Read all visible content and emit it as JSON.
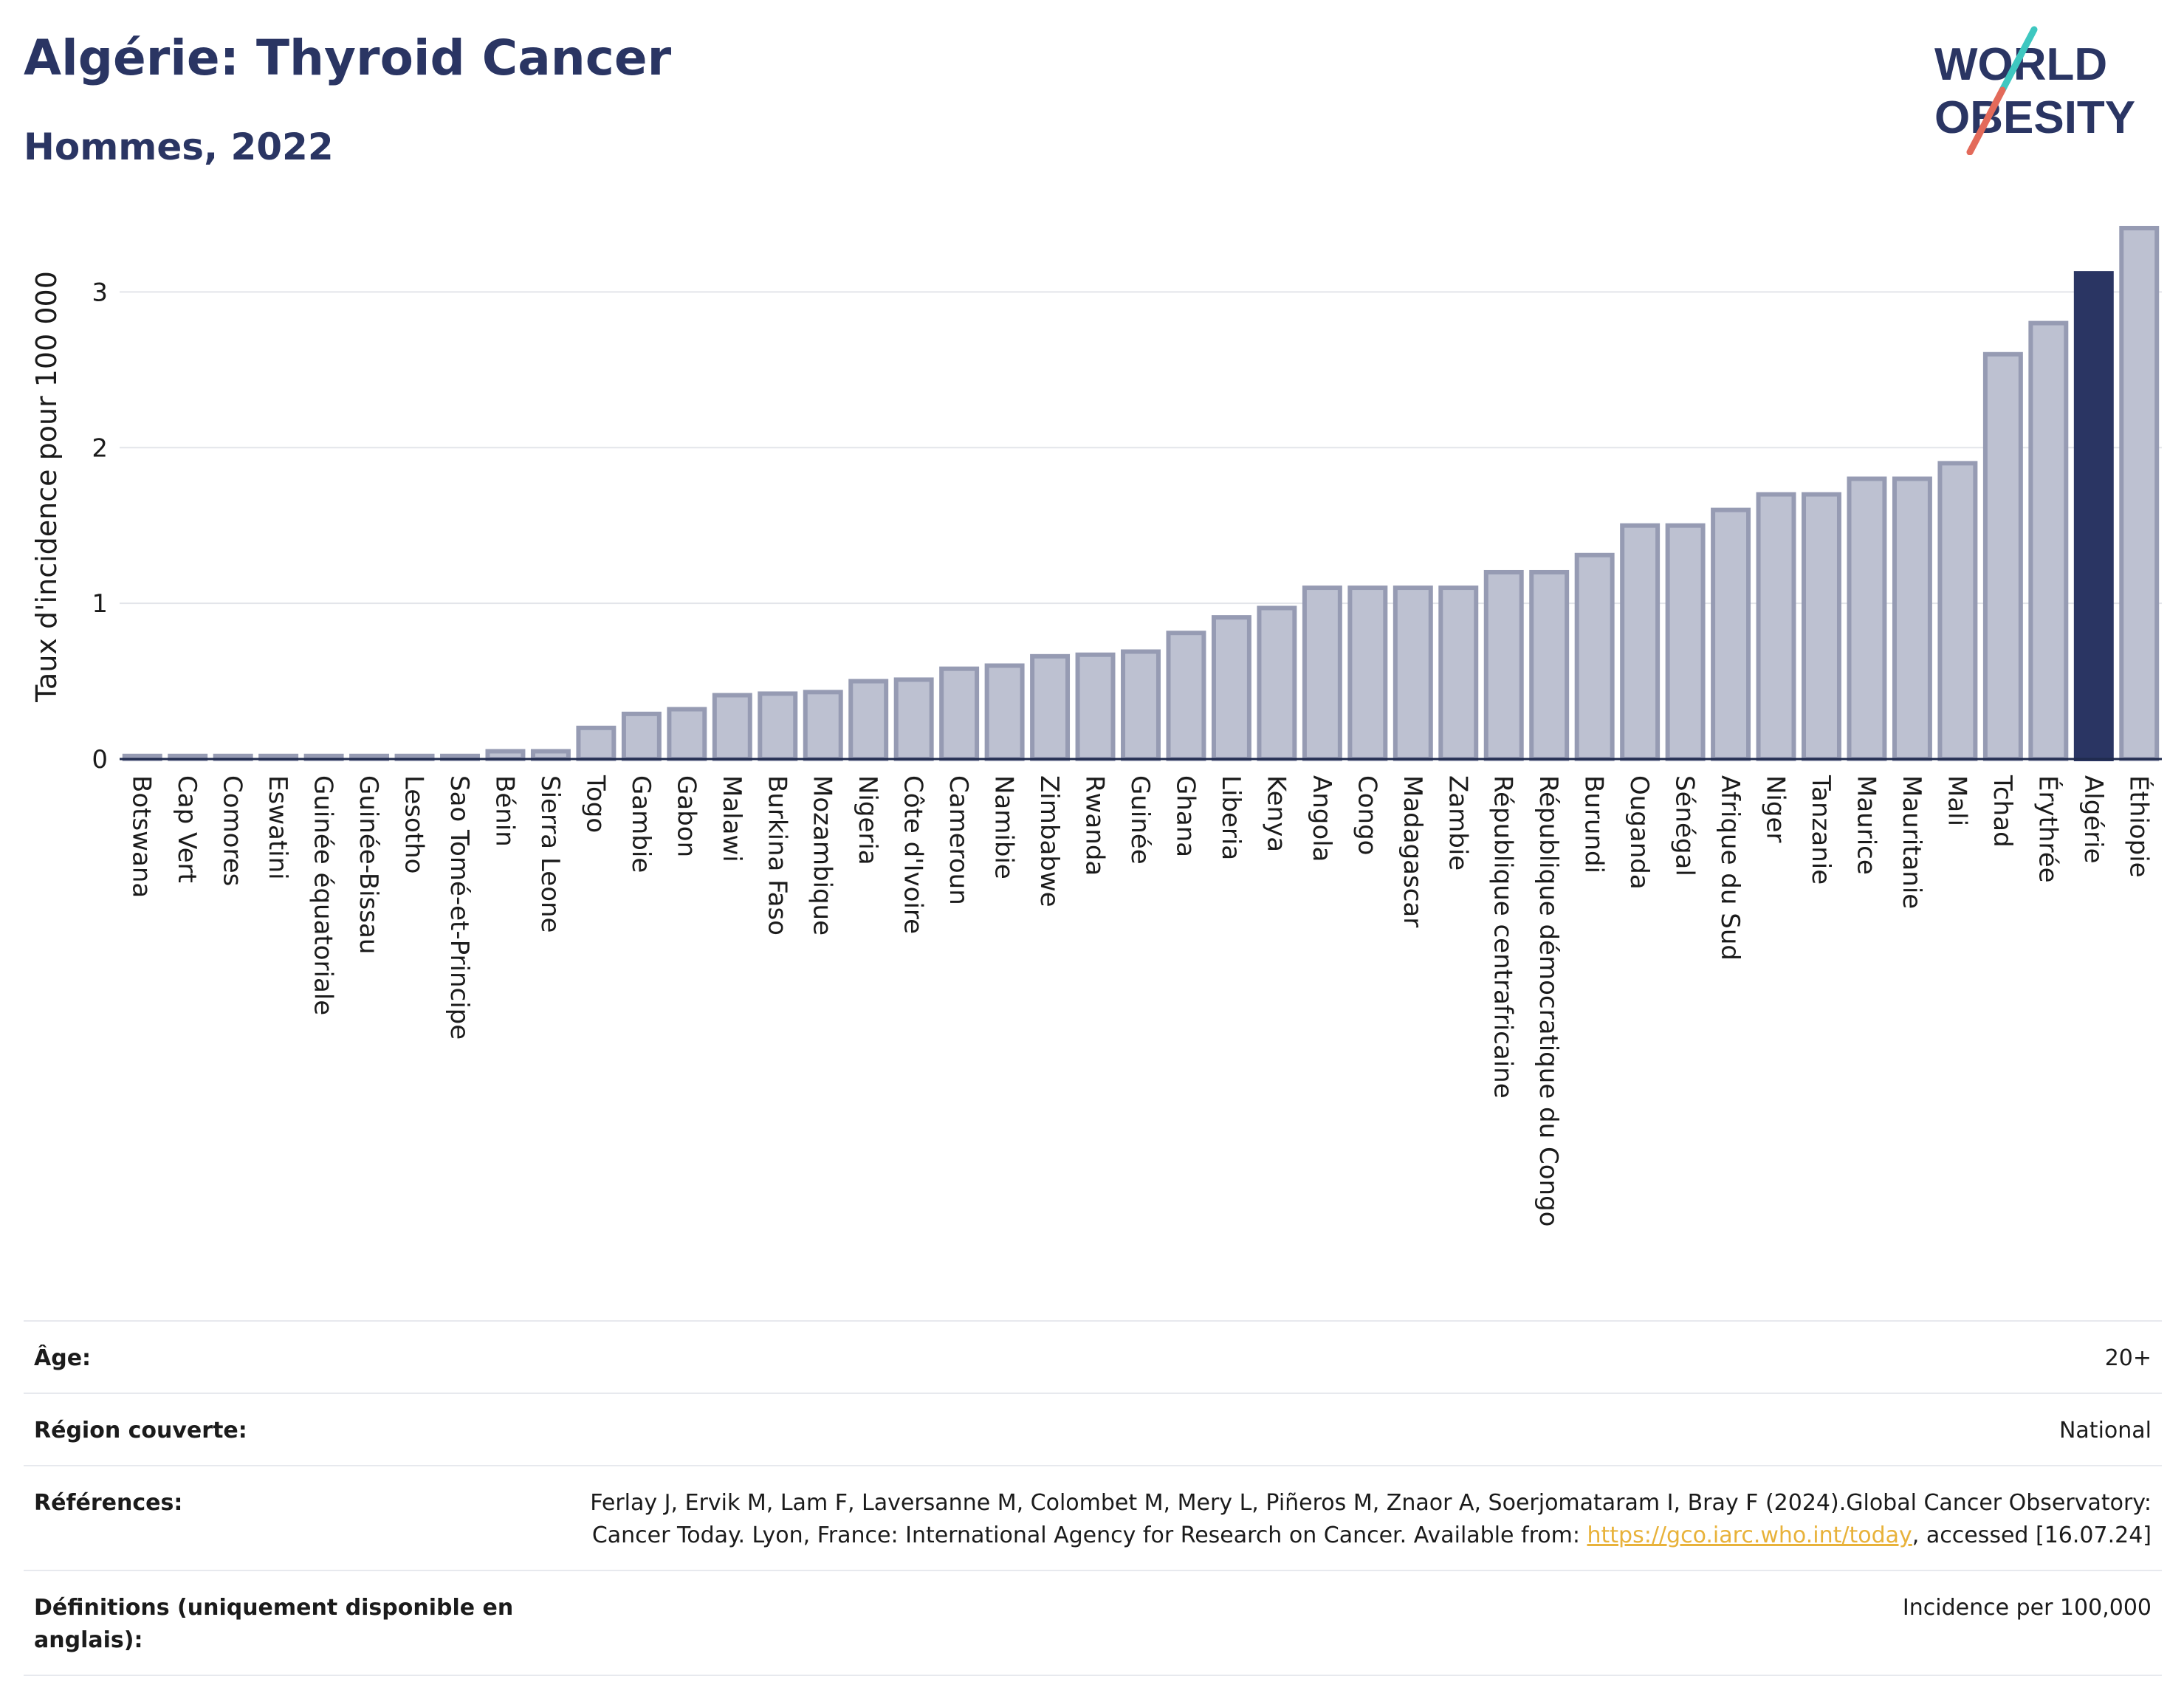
{
  "header": {
    "title": "Algérie: Thyroid Cancer",
    "subtitle": "Hommes, 2022",
    "logo_line1": "WORLD",
    "logo_line2": "OBESITY"
  },
  "colors": {
    "bar": "#bdc1d1",
    "bar_border": "#969bb3",
    "highlight": "#2a3563",
    "grid": "#e3e5ea",
    "text": "#1b1b1b",
    "link": "#e8b23a"
  },
  "chart_data": {
    "type": "bar",
    "ylabel": "Taux d'incidence pour 100 000",
    "ylim": [
      0,
      3.5
    ],
    "yticks": [
      0,
      1,
      2,
      3
    ],
    "grid": true,
    "highlight": "Algérie",
    "categories": [
      "Botswana",
      "Cap Vert",
      "Comores",
      "Eswatini",
      "Guinée équatoriale",
      "Guinée-Bissau",
      "Lesotho",
      "Sao Tomé-et-Principe",
      "Bénin",
      "Sierra Leone",
      "Togo",
      "Gambie",
      "Gabon",
      "Malawi",
      "Burkina Faso",
      "Mozambique",
      "Nigeria",
      "Côte d'Ivoire",
      "Cameroun",
      "Namibie",
      "Zimbabwe",
      "Rwanda",
      "Guinée",
      "Ghana",
      "Liberia",
      "Kenya",
      "Angola",
      "Congo",
      "Madagascar",
      "Zambie",
      "République centrafricaine",
      "République démocratique du Congo",
      "Burundi",
      "Ouganda",
      "Sénégal",
      "Afrique du Sud",
      "Niger",
      "Tanzanie",
      "Maurice",
      "Mauritanie",
      "Mali",
      "Tchad",
      "Érythrée",
      "Algérie",
      "Éthiopie"
    ],
    "values": [
      0.02,
      0.02,
      0.02,
      0.02,
      0.02,
      0.02,
      0.02,
      0.02,
      0.05,
      0.05,
      0.2,
      0.29,
      0.32,
      0.41,
      0.42,
      0.43,
      0.5,
      0.51,
      0.58,
      0.6,
      0.66,
      0.67,
      0.69,
      0.81,
      0.91,
      0.97,
      1.1,
      1.1,
      1.1,
      1.1,
      1.2,
      1.2,
      1.31,
      1.5,
      1.5,
      1.6,
      1.7,
      1.7,
      1.8,
      1.8,
      1.9,
      2.6,
      2.8,
      3.12,
      3.41
    ]
  },
  "info": {
    "age_label": "Âge:",
    "age_value": "20+",
    "region_label": "Région couverte:",
    "region_value": "National",
    "refs_label": "Références:",
    "refs_text_1": "Ferlay J, Ervik M, Lam F, Laversanne M, Colombet M, Mery L, Piñeros M, Znaor A, Soerjomataram I, Bray F (2024).Global Cancer Observatory: Cancer Today. Lyon, France: International Agency for Research on Cancer. Available from: ",
    "refs_link": "https://gco.iarc.who.int/today",
    "refs_text_2": ", accessed [16.07.24]",
    "defs_label": "Définitions (uniquement disponible en anglais):",
    "defs_value": "Incidence per 100,000"
  }
}
